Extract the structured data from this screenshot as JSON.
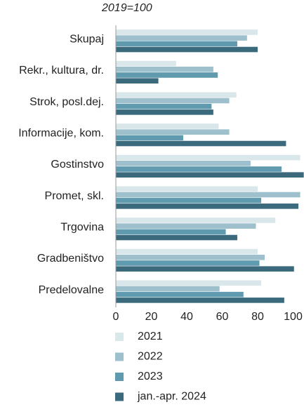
{
  "chart_data": {
    "type": "bar",
    "orientation": "horizontal",
    "subtitle": "2019=100",
    "categories": [
      "Skupaj",
      "Rekr., kultura, dr.",
      "Strok, posl.dej.",
      "Informacije, kom.",
      "Gostinstvo",
      "Promet, skl.",
      "Trgovina",
      "Gradbeništvo",
      "Predelovalne"
    ],
    "series": [
      {
        "name": "2021",
        "color": "#d9e6ea",
        "values": [
          80,
          34,
          68,
          58,
          104,
          80,
          90,
          80,
          82
        ]
      },
      {
        "name": "2022",
        "color": "#9dc0cc",
        "values": [
          74,
          55,
          64,
          64,
          76,
          104,
          79,
          84,
          58.5
        ]
      },
      {
        "name": "2023",
        "color": "#5f9aae",
        "values": [
          68.5,
          57.5,
          54,
          38,
          93.5,
          82,
          62,
          81,
          72
        ]
      },
      {
        "name": "jan.-apr. 2024",
        "color": "#3b6a7c",
        "values": [
          80,
          24,
          55,
          96,
          106,
          103,
          68.5,
          100.5,
          95
        ]
      }
    ],
    "xlim": [
      0,
      106
    ],
    "xticks": [
      0,
      20,
      40,
      60,
      80,
      100
    ],
    "grid": false,
    "legend": "bottom"
  }
}
